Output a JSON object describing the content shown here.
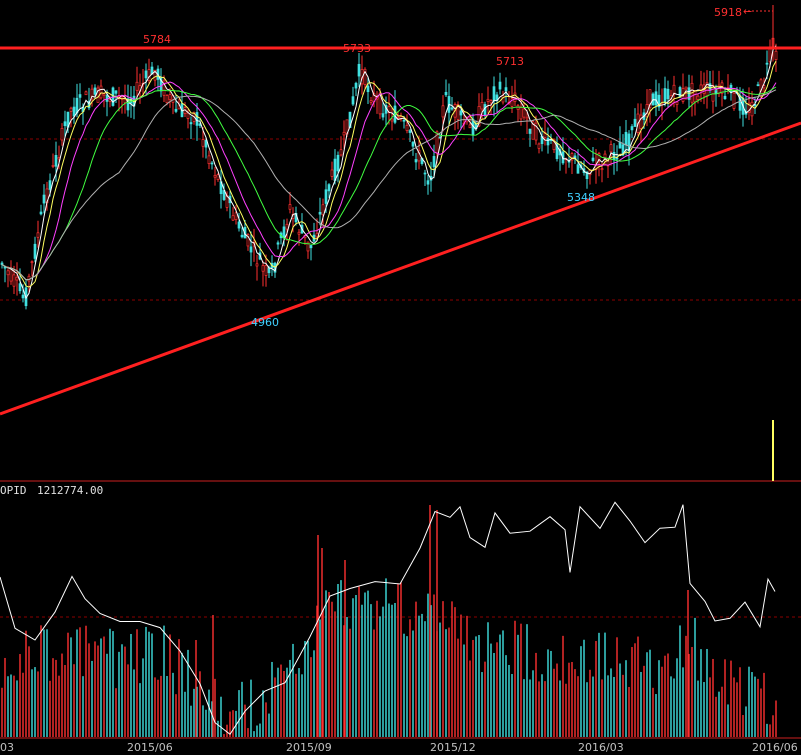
{
  "indicator": {
    "name": "OPID",
    "value": "1212774.00"
  },
  "price_labels": {
    "high_1": "5784",
    "high_2": "5733",
    "high_3": "5713",
    "low_1": "4960",
    "low_2": "5348",
    "peak": "5918"
  },
  "peak_arrow": "←",
  "x_axis_labels": [
    "03",
    "2015/06",
    "2015/09",
    "2015/12",
    "2016/03",
    "2016/06"
  ],
  "colors": {
    "background": "#000000",
    "trendline": "#ff2020",
    "up_candle": "#ff3030",
    "down_candle": "#40e0e0",
    "ma5": "#ffffff",
    "ma10": "#ffff60",
    "ma20": "#ff40ff",
    "ma30": "#40ff40",
    "ma60": "#b0b0b0",
    "low_label": "#40d0ff",
    "high_label": "#ff3030",
    "grid_dashed": "#8b0000"
  },
  "chart_data": {
    "type": "candlestick",
    "resistance_level": 5784,
    "support_trendline": {
      "from_low": 4960,
      "to_low": 5348
    },
    "marked_highs": [
      5784,
      5733,
      5713,
      5918
    ],
    "marked_lows": [
      4960,
      5348
    ],
    "x_axis": [
      "2015/06",
      "2015/09",
      "2015/12",
      "2016/03",
      "2016/06"
    ],
    "indicator": {
      "name": "OPID",
      "last_value": 1212774.0
    }
  }
}
